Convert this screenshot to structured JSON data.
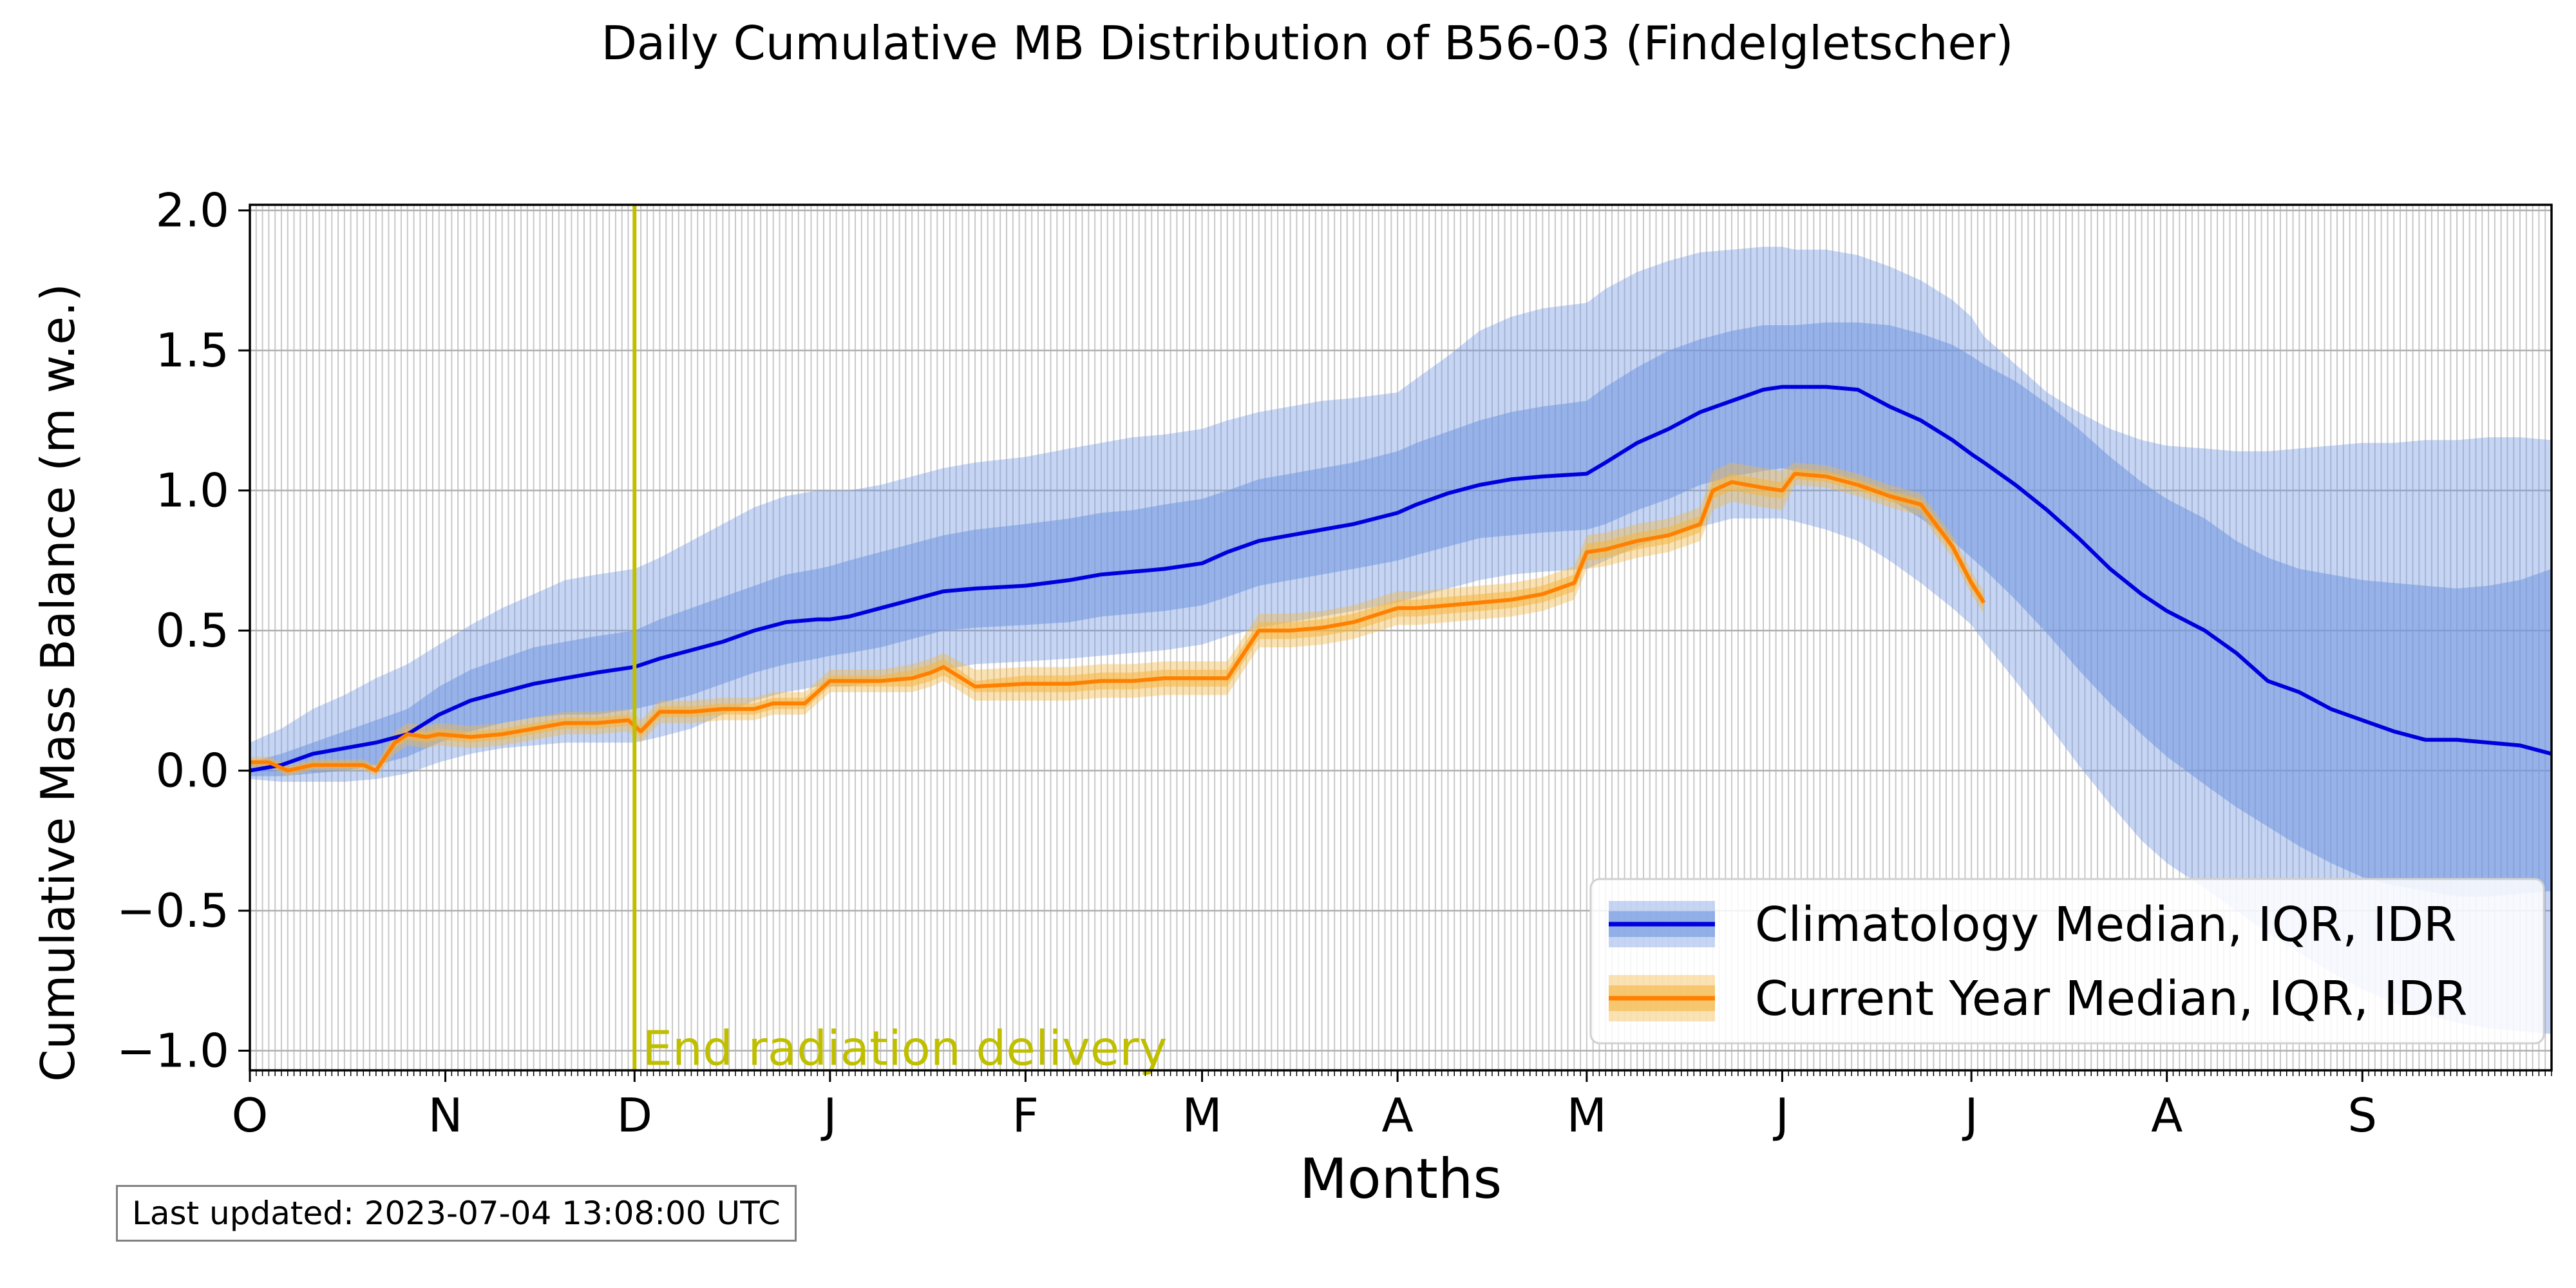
{
  "chart_data": {
    "type": "line",
    "title": "Daily Cumulative MB Distribution of B56-03 (Findelgletscher)",
    "xlabel": "Months",
    "ylabel": "Cumulative Mass Balance (m w.e.)",
    "xlim": [
      0,
      365
    ],
    "ylim": [
      -1.07,
      2.02
    ],
    "x_ticks": [
      {
        "day": 0,
        "label": "O"
      },
      {
        "day": 31,
        "label": "N"
      },
      {
        "day": 61,
        "label": "D"
      },
      {
        "day": 92,
        "label": "J"
      },
      {
        "day": 123,
        "label": "F"
      },
      {
        "day": 151,
        "label": "M"
      },
      {
        "day": 182,
        "label": "A"
      },
      {
        "day": 212,
        "label": "M"
      },
      {
        "day": 243,
        "label": "J"
      },
      {
        "day": 273,
        "label": "J"
      },
      {
        "day": 304,
        "label": "A"
      },
      {
        "day": 335,
        "label": "S"
      }
    ],
    "y_ticks": [
      {
        "value": -1.0,
        "label": "−1.0"
      },
      {
        "value": -0.5,
        "label": "−0.5"
      },
      {
        "value": 0.0,
        "label": "0.0"
      },
      {
        "value": 0.5,
        "label": "0.5"
      },
      {
        "value": 1.0,
        "label": "1.0"
      },
      {
        "value": 1.5,
        "label": "1.5"
      },
      {
        "value": 2.0,
        "label": "2.0"
      }
    ],
    "grid": true,
    "legend_position": "lower-right",
    "annotation": {
      "day": 61,
      "label": "End radiation delivery",
      "color": "#bfbf00"
    },
    "series": [
      {
        "name": "Climatology Median, IQR, IDR",
        "line_color": "#0000dd",
        "band_color": "#6f96e0",
        "x": [
          0,
          5,
          10,
          15,
          20,
          25,
          30,
          35,
          40,
          45,
          50,
          55,
          61,
          65,
          70,
          75,
          80,
          85,
          90,
          92,
          95,
          100,
          105,
          110,
          115,
          123,
          130,
          135,
          140,
          145,
          151,
          155,
          160,
          165,
          170,
          175,
          182,
          185,
          190,
          195,
          200,
          205,
          212,
          215,
          220,
          225,
          230,
          235,
          240,
          243,
          245,
          250,
          255,
          260,
          265,
          270,
          273,
          275,
          280,
          285,
          290,
          295,
          300,
          304,
          310,
          315,
          320,
          325,
          330,
          335,
          340,
          345,
          350,
          355,
          360,
          365
        ],
        "median": [
          0.0,
          0.02,
          0.06,
          0.08,
          0.1,
          0.13,
          0.2,
          0.25,
          0.28,
          0.31,
          0.33,
          0.35,
          0.37,
          0.4,
          0.43,
          0.46,
          0.5,
          0.53,
          0.54,
          0.54,
          0.55,
          0.58,
          0.61,
          0.64,
          0.65,
          0.66,
          0.68,
          0.7,
          0.71,
          0.72,
          0.74,
          0.78,
          0.82,
          0.84,
          0.86,
          0.88,
          0.92,
          0.95,
          0.99,
          1.02,
          1.04,
          1.05,
          1.06,
          1.1,
          1.17,
          1.22,
          1.28,
          1.32,
          1.36,
          1.37,
          1.37,
          1.37,
          1.36,
          1.3,
          1.25,
          1.18,
          1.13,
          1.1,
          1.02,
          0.93,
          0.83,
          0.72,
          0.63,
          0.57,
          0.5,
          0.42,
          0.32,
          0.28,
          0.22,
          0.18,
          0.14,
          0.11,
          0.11,
          0.1,
          0.09,
          0.06
        ],
        "iqr_low": [
          -0.02,
          -0.02,
          -0.01,
          0.0,
          0.02,
          0.05,
          0.1,
          0.14,
          0.17,
          0.19,
          0.2,
          0.2,
          0.22,
          0.24,
          0.27,
          0.31,
          0.35,
          0.38,
          0.4,
          0.41,
          0.42,
          0.44,
          0.47,
          0.5,
          0.51,
          0.52,
          0.53,
          0.55,
          0.56,
          0.57,
          0.59,
          0.62,
          0.66,
          0.68,
          0.7,
          0.72,
          0.75,
          0.77,
          0.8,
          0.83,
          0.84,
          0.85,
          0.86,
          0.88,
          0.93,
          0.97,
          1.02,
          1.05,
          1.07,
          1.08,
          1.07,
          1.06,
          1.03,
          0.97,
          0.9,
          0.82,
          0.76,
          0.72,
          0.61,
          0.49,
          0.36,
          0.24,
          0.13,
          0.05,
          -0.05,
          -0.13,
          -0.2,
          -0.27,
          -0.33,
          -0.38,
          -0.41,
          -0.43,
          -0.45,
          -0.45,
          -0.44,
          -0.43
        ],
        "iqr_high": [
          0.03,
          0.06,
          0.1,
          0.14,
          0.18,
          0.22,
          0.3,
          0.36,
          0.4,
          0.44,
          0.46,
          0.48,
          0.5,
          0.54,
          0.58,
          0.62,
          0.66,
          0.7,
          0.72,
          0.73,
          0.75,
          0.78,
          0.81,
          0.84,
          0.86,
          0.88,
          0.9,
          0.92,
          0.93,
          0.95,
          0.97,
          1.0,
          1.04,
          1.06,
          1.08,
          1.1,
          1.14,
          1.17,
          1.21,
          1.25,
          1.28,
          1.3,
          1.32,
          1.37,
          1.44,
          1.5,
          1.54,
          1.57,
          1.59,
          1.59,
          1.59,
          1.6,
          1.6,
          1.59,
          1.56,
          1.52,
          1.48,
          1.45,
          1.39,
          1.31,
          1.22,
          1.12,
          1.03,
          0.97,
          0.9,
          0.82,
          0.76,
          0.72,
          0.7,
          0.68,
          0.67,
          0.66,
          0.65,
          0.66,
          0.68,
          0.72
        ],
        "idr_low": [
          -0.03,
          -0.04,
          -0.04,
          -0.04,
          -0.03,
          -0.01,
          0.03,
          0.06,
          0.08,
          0.09,
          0.1,
          0.1,
          0.1,
          0.12,
          0.15,
          0.2,
          0.25,
          0.28,
          0.3,
          0.3,
          0.3,
          0.32,
          0.34,
          0.36,
          0.38,
          0.39,
          0.4,
          0.41,
          0.42,
          0.43,
          0.45,
          0.48,
          0.51,
          0.53,
          0.55,
          0.57,
          0.6,
          0.62,
          0.65,
          0.68,
          0.7,
          0.71,
          0.72,
          0.75,
          0.8,
          0.84,
          0.87,
          0.9,
          0.9,
          0.9,
          0.89,
          0.86,
          0.82,
          0.75,
          0.67,
          0.58,
          0.52,
          0.46,
          0.32,
          0.17,
          0.02,
          -0.12,
          -0.25,
          -0.33,
          -0.42,
          -0.5,
          -0.58,
          -0.65,
          -0.72,
          -0.78,
          -0.83,
          -0.87,
          -0.9,
          -0.92,
          -0.93,
          -0.94
        ],
        "idr_high": [
          0.1,
          0.15,
          0.22,
          0.27,
          0.33,
          0.38,
          0.45,
          0.52,
          0.58,
          0.63,
          0.68,
          0.7,
          0.72,
          0.76,
          0.82,
          0.88,
          0.94,
          0.98,
          1.0,
          1.0,
          1.0,
          1.02,
          1.05,
          1.08,
          1.1,
          1.12,
          1.15,
          1.17,
          1.19,
          1.2,
          1.22,
          1.25,
          1.28,
          1.3,
          1.32,
          1.33,
          1.35,
          1.4,
          1.48,
          1.57,
          1.62,
          1.65,
          1.67,
          1.72,
          1.78,
          1.82,
          1.85,
          1.86,
          1.87,
          1.87,
          1.86,
          1.86,
          1.84,
          1.8,
          1.75,
          1.68,
          1.62,
          1.55,
          1.45,
          1.35,
          1.28,
          1.22,
          1.18,
          1.16,
          1.15,
          1.14,
          1.14,
          1.15,
          1.16,
          1.17,
          1.17,
          1.18,
          1.18,
          1.19,
          1.19,
          1.18
        ]
      },
      {
        "name": "Current Year Median, IQR, IDR",
        "line_color": "#ff8000",
        "band_color": "#f5b642",
        "x": [
          0,
          3,
          6,
          10,
          15,
          18,
          20,
          23,
          25,
          28,
          30,
          35,
          40,
          45,
          50,
          55,
          60,
          62,
          65,
          70,
          75,
          80,
          83,
          88,
          92,
          95,
          100,
          105,
          108,
          110,
          115,
          123,
          130,
          135,
          140,
          145,
          150,
          155,
          160,
          165,
          170,
          175,
          182,
          185,
          190,
          195,
          200,
          205,
          210,
          212,
          215,
          220,
          225,
          230,
          232,
          235,
          240,
          243,
          245,
          250,
          255,
          260,
          265,
          270,
          273,
          275
        ],
        "median": [
          0.03,
          0.03,
          0.0,
          0.02,
          0.02,
          0.02,
          0.0,
          0.1,
          0.13,
          0.12,
          0.13,
          0.12,
          0.13,
          0.15,
          0.17,
          0.17,
          0.18,
          0.14,
          0.21,
          0.21,
          0.22,
          0.22,
          0.24,
          0.24,
          0.32,
          0.32,
          0.32,
          0.33,
          0.35,
          0.37,
          0.3,
          0.31,
          0.31,
          0.32,
          0.32,
          0.33,
          0.33,
          0.33,
          0.5,
          0.5,
          0.51,
          0.53,
          0.58,
          0.58,
          0.59,
          0.6,
          0.61,
          0.63,
          0.67,
          0.78,
          0.79,
          0.82,
          0.84,
          0.88,
          1.0,
          1.03,
          1.01,
          1.0,
          1.06,
          1.05,
          1.02,
          0.98,
          0.95,
          0.8,
          0.67,
          0.6
        ],
        "iqr_low": [
          0.02,
          0.02,
          -0.01,
          0.01,
          0.01,
          0.01,
          -0.01,
          0.08,
          0.11,
          0.1,
          0.11,
          0.1,
          0.11,
          0.13,
          0.15,
          0.15,
          0.16,
          0.12,
          0.19,
          0.19,
          0.2,
          0.2,
          0.22,
          0.22,
          0.3,
          0.3,
          0.3,
          0.3,
          0.32,
          0.34,
          0.28,
          0.28,
          0.28,
          0.29,
          0.29,
          0.3,
          0.3,
          0.3,
          0.47,
          0.47,
          0.48,
          0.5,
          0.55,
          0.55,
          0.56,
          0.57,
          0.58,
          0.6,
          0.64,
          0.75,
          0.76,
          0.79,
          0.81,
          0.85,
          0.97,
          1.0,
          0.98,
          0.97,
          1.04,
          1.03,
          1.0,
          0.96,
          0.93,
          0.78,
          0.65,
          0.58
        ],
        "iqr_high": [
          0.04,
          0.04,
          0.01,
          0.03,
          0.03,
          0.03,
          0.01,
          0.12,
          0.15,
          0.14,
          0.15,
          0.14,
          0.15,
          0.17,
          0.19,
          0.19,
          0.2,
          0.16,
          0.23,
          0.23,
          0.24,
          0.24,
          0.26,
          0.26,
          0.34,
          0.34,
          0.34,
          0.36,
          0.38,
          0.4,
          0.32,
          0.34,
          0.34,
          0.35,
          0.35,
          0.36,
          0.36,
          0.36,
          0.53,
          0.53,
          0.54,
          0.56,
          0.61,
          0.61,
          0.62,
          0.63,
          0.64,
          0.66,
          0.7,
          0.81,
          0.82,
          0.85,
          0.87,
          0.91,
          1.03,
          1.06,
          1.04,
          1.03,
          1.08,
          1.07,
          1.04,
          1.0,
          0.97,
          0.82,
          0.69,
          0.62
        ],
        "idr_low": [
          0.01,
          0.01,
          -0.02,
          0.0,
          0.0,
          0.0,
          -0.02,
          0.06,
          0.09,
          0.08,
          0.09,
          0.08,
          0.09,
          0.11,
          0.13,
          0.13,
          0.14,
          0.1,
          0.17,
          0.17,
          0.18,
          0.18,
          0.2,
          0.2,
          0.28,
          0.28,
          0.28,
          0.28,
          0.3,
          0.32,
          0.25,
          0.25,
          0.25,
          0.26,
          0.26,
          0.27,
          0.27,
          0.27,
          0.44,
          0.44,
          0.45,
          0.47,
          0.52,
          0.52,
          0.53,
          0.54,
          0.55,
          0.57,
          0.61,
          0.72,
          0.73,
          0.76,
          0.78,
          0.82,
          0.93,
          0.96,
          0.94,
          0.93,
          1.02,
          1.01,
          0.98,
          0.94,
          0.91,
          0.76,
          0.63,
          0.56
        ],
        "idr_high": [
          0.05,
          0.05,
          0.02,
          0.04,
          0.04,
          0.04,
          0.02,
          0.14,
          0.17,
          0.16,
          0.17,
          0.16,
          0.17,
          0.19,
          0.21,
          0.21,
          0.22,
          0.18,
          0.25,
          0.25,
          0.26,
          0.26,
          0.28,
          0.28,
          0.36,
          0.36,
          0.36,
          0.38,
          0.4,
          0.42,
          0.36,
          0.37,
          0.37,
          0.38,
          0.38,
          0.39,
          0.39,
          0.39,
          0.56,
          0.56,
          0.57,
          0.59,
          0.64,
          0.64,
          0.65,
          0.66,
          0.67,
          0.69,
          0.73,
          0.84,
          0.85,
          0.88,
          0.9,
          0.94,
          1.07,
          1.1,
          1.08,
          1.07,
          1.1,
          1.09,
          1.06,
          1.02,
          0.99,
          0.84,
          0.71,
          0.64
        ]
      }
    ]
  },
  "footer": {
    "last_updated": "Last updated: 2023-07-04 13:08:00 UTC"
  }
}
